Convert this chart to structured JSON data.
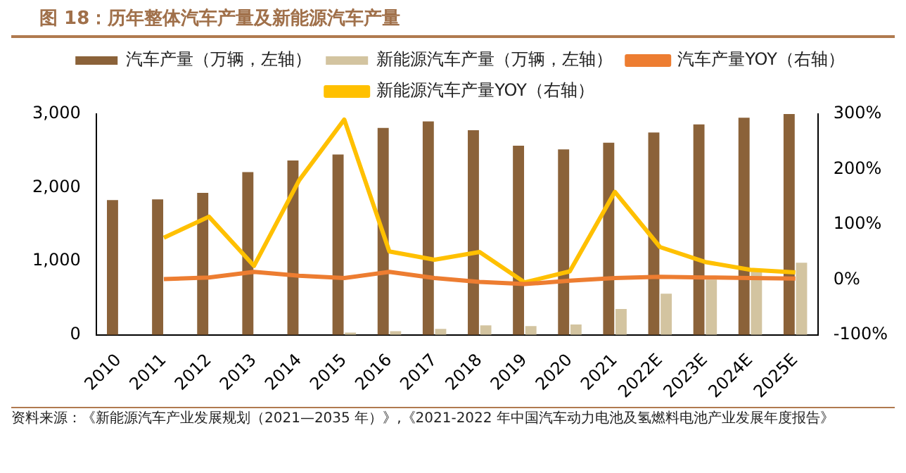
{
  "chart_data": {
    "type": "bar",
    "title": "图 18：历年整体汽车产量及新能源汽车产量",
    "categories": [
      "2010",
      "2011",
      "2012",
      "2013",
      "2014",
      "2015",
      "2016",
      "2017",
      "2018",
      "2019",
      "2020",
      "2021",
      "2022E",
      "2023E",
      "2024E",
      "2025E"
    ],
    "series": [
      {
        "name": "汽车产量（万辆，左轴）",
        "color": "#8b6239",
        "values": [
          1830,
          1840,
          1930,
          2210,
          2370,
          2450,
          2810,
          2900,
          2780,
          2570,
          2520,
          2610,
          2750,
          2860,
          2950,
          3000
        ]
      },
      {
        "name": "新能源汽车产量（万辆，左轴）",
        "color": "#d3c4a0",
        "values": [
          null,
          null,
          null,
          null,
          null,
          30,
          50,
          80,
          130,
          120,
          140,
          350,
          560,
          750,
          880,
          980
        ]
      },
      {
        "name": "汽车产量YOY（右轴）",
        "type": "line",
        "axis": "y2",
        "color": "#ed7d31",
        "values": [
          null,
          1,
          4,
          14,
          7,
          3,
          14,
          3,
          -4,
          -8,
          -2,
          3,
          5,
          4,
          3,
          2
        ]
      },
      {
        "name": "新能源汽车产量YOY（右轴）",
        "type": "line",
        "axis": "y2",
        "color": "#ffc000",
        "values": [
          null,
          76,
          114,
          25,
          180,
          290,
          51,
          36,
          50,
          -5,
          15,
          159,
          59,
          32,
          18,
          13
        ]
      }
    ],
    "ylim": [
      0,
      3000
    ],
    "yticks": [
      0,
      {
        "value": 1000,
        "label": "1,000"
      },
      {
        "value": 2000,
        "label": "2,000"
      },
      {
        "value": 3000,
        "label": "3,000"
      }
    ],
    "y2lim": [
      -100,
      300
    ],
    "y2ticks": [
      {
        "value": -100,
        "label": "-100%"
      },
      {
        "value": 0,
        "label": "0%"
      },
      {
        "value": 100,
        "label": "100%"
      },
      {
        "value": 200,
        "label": "200%"
      },
      {
        "value": 300,
        "label": "300%"
      }
    ],
    "grid": false,
    "legend": "top",
    "marker": "none",
    "annotations": [
      "资料来源：《新能源汽车产业发展规划（2021—2035 年）》,《2021-2022 年中国汽车动力电池及氢燃料电池产业发展年度报告》"
    ]
  }
}
